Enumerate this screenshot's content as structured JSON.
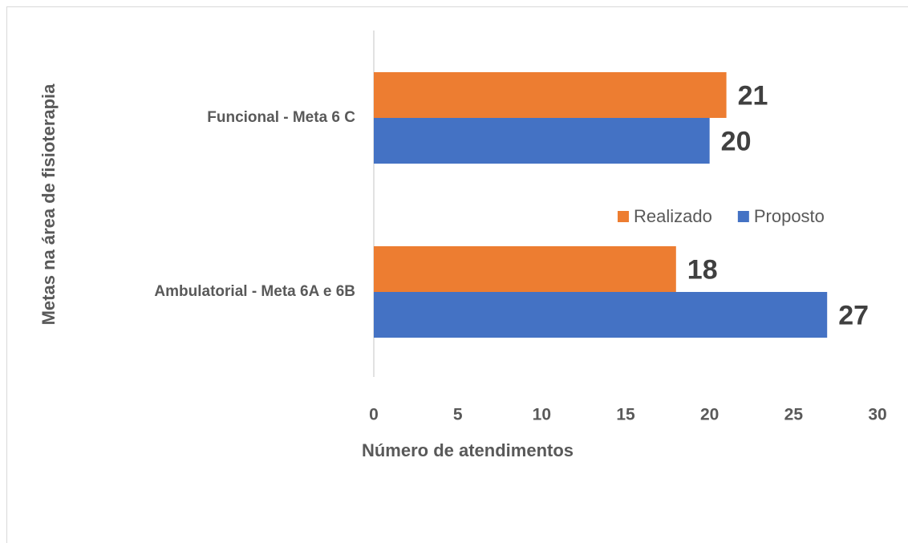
{
  "chart_data": {
    "type": "barh",
    "categories": [
      "Funcional - Meta 6 C",
      "Ambulatorial - Meta 6A e 6B"
    ],
    "series": [
      {
        "name": "Realizado",
        "color": "#ed7d31",
        "values": [
          21,
          18
        ]
      },
      {
        "name": "Proposto",
        "color": "#4472c4",
        "values": [
          20,
          27
        ]
      }
    ],
    "xlabel": "Número de atendimentos",
    "ylabel": "Metas na  área de fisioterapia",
    "xlim": [
      0,
      30
    ],
    "xticks": [
      0,
      5,
      10,
      15,
      20,
      25,
      30
    ],
    "legend": "right",
    "grid": false
  }
}
